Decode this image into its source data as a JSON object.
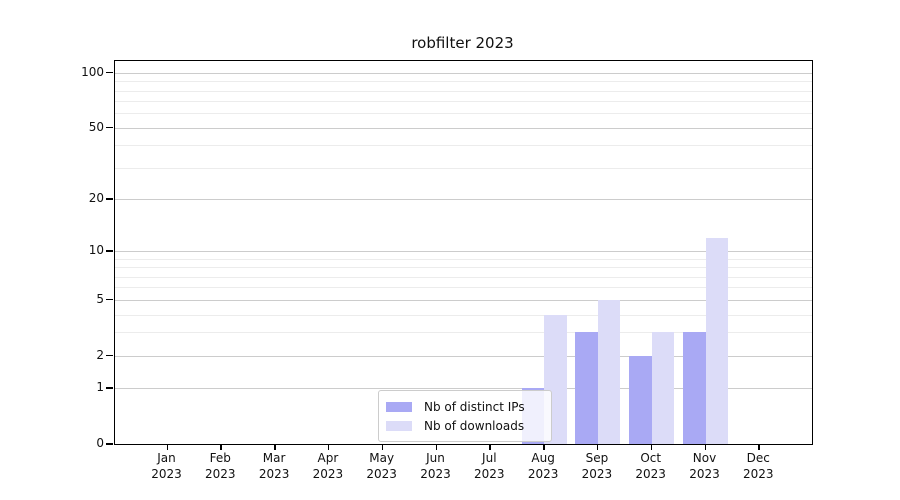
{
  "chart_data": {
    "type": "bar",
    "title": "robfilter 2023",
    "categories": [
      "Jan",
      "Feb",
      "Mar",
      "Apr",
      "May",
      "Jun",
      "Jul",
      "Aug",
      "Sep",
      "Oct",
      "Nov",
      "Dec"
    ],
    "year_label": "2023",
    "series": [
      {
        "name": "Nb of distinct IPs",
        "color_key": "ips",
        "values": [
          0,
          0,
          0,
          0,
          0,
          0,
          0,
          1,
          3,
          2,
          3,
          0
        ]
      },
      {
        "name": "Nb of downloads",
        "color_key": "downloads",
        "values": [
          0,
          0,
          0,
          0,
          0,
          0,
          0,
          4,
          5,
          3,
          12,
          0
        ]
      }
    ],
    "yscale": "log1p",
    "ylim": [
      0,
      100
    ],
    "yticks": [
      0,
      1,
      2,
      5,
      10,
      20,
      50,
      100
    ],
    "yticks_minor": [
      3,
      4,
      6,
      7,
      8,
      9,
      30,
      40,
      60,
      70,
      80,
      90
    ],
    "grid": true,
    "legend_position": "lower center"
  },
  "colors": {
    "ips": "#a9a9f4",
    "downloads": "#dcdcf8",
    "grid_major": "#cccccc",
    "grid_minor": "#ececec",
    "spine": "#000000",
    "legend_border": "#cccccc"
  },
  "legend": {
    "items": [
      {
        "label": "Nb of distinct IPs",
        "color_key": "ips"
      },
      {
        "label": "Nb of downloads",
        "color_key": "downloads"
      }
    ]
  }
}
